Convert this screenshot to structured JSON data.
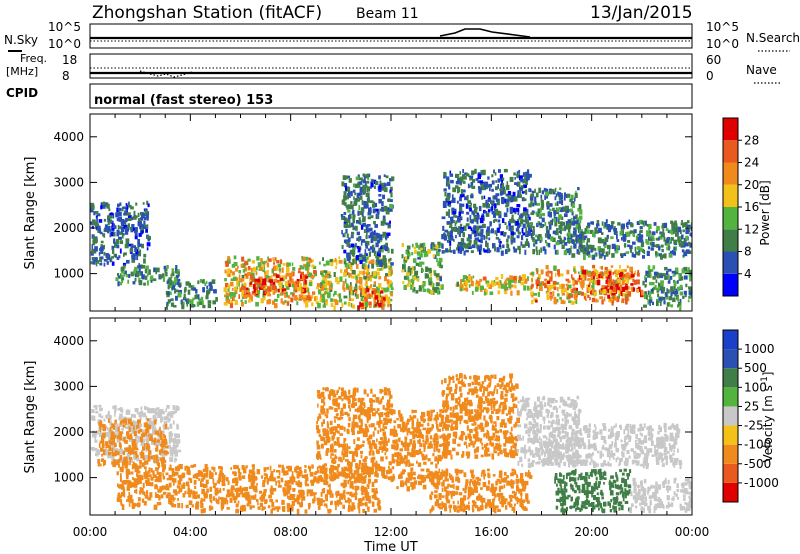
{
  "header": {
    "station": "Zhongshan Station (fitACF)",
    "beam": "Beam 11",
    "date": "13/Jan/2015"
  },
  "noise_panel": {
    "left_label": "N.Sky",
    "right_label": "N.Search",
    "left_ticks": [
      "10^5",
      "10^0"
    ],
    "right_ticks": [
      "10^5",
      "10^0"
    ]
  },
  "freq_panel": {
    "left_label_1": "Freq.",
    "left_label_2": "[MHz]",
    "right_label": "Nave",
    "left_ticks": [
      "18",
      "8"
    ],
    "right_ticks": [
      "60",
      "0"
    ]
  },
  "cpid": {
    "label": "CPID",
    "value": "normal (fast stereo) 153"
  },
  "colors": {
    "power_scale": [
      "#0000ff",
      "#2b50b4",
      "#3f7e46",
      "#52b33f",
      "#f2c21a",
      "#f08a1c",
      "#e85a1e",
      "#e00000"
    ],
    "velocity_scale": [
      "#e00000",
      "#e85a1e",
      "#f08a1c",
      "#f2c21a",
      "#c8c8c8",
      "#52b33f",
      "#3f7e46",
      "#2b50b4",
      "#1a3fc8"
    ]
  },
  "chart_data": [
    {
      "type": "heatmap",
      "title": "",
      "xlabel": "",
      "ylabel": "Slant Range [km]",
      "xlim": [
        "00:00",
        "24:00"
      ],
      "ylim": [
        180,
        4500
      ],
      "x_ticks": [
        "00:00",
        "04:00",
        "08:00",
        "12:00",
        "16:00",
        "20:00",
        "00:00"
      ],
      "y_ticks": [
        1000,
        2000,
        3000,
        4000
      ],
      "colorbar": {
        "label": "Power [dB]",
        "ticks": [
          4,
          8,
          12,
          16,
          20,
          24,
          28
        ],
        "range": [
          0,
          30
        ]
      },
      "regions": [
        {
          "t": [
            0.0,
            2.3
          ],
          "r": [
            1200,
            2600
          ],
          "v": 7
        },
        {
          "t": [
            1.0,
            3.5
          ],
          "r": [
            800,
            1200
          ],
          "v": 10
        },
        {
          "t": [
            3.0,
            5.0
          ],
          "r": [
            300,
            900
          ],
          "v": 9
        },
        {
          "t": [
            5.3,
            9.0
          ],
          "r": [
            350,
            1400
          ],
          "v": 19
        },
        {
          "t": [
            6.0,
            8.6
          ],
          "r": [
            600,
            1000
          ],
          "v": 25
        },
        {
          "t": [
            9.0,
            12.0
          ],
          "r": [
            300,
            1400
          ],
          "v": 16
        },
        {
          "t": [
            10.5,
            12.0
          ],
          "r": [
            300,
            700
          ],
          "v": 24
        },
        {
          "t": [
            10.0,
            12.0
          ],
          "r": [
            1200,
            3200
          ],
          "v": 8
        },
        {
          "t": [
            12.4,
            14.0
          ],
          "r": [
            600,
            1700
          ],
          "v": 13
        },
        {
          "t": [
            14.0,
            17.5
          ],
          "r": [
            1500,
            3300
          ],
          "v": 7
        },
        {
          "t": [
            14.5,
            17.5
          ],
          "r": [
            600,
            1000
          ],
          "v": 18
        },
        {
          "t": [
            17.5,
            19.5
          ],
          "r": [
            1500,
            2900
          ],
          "v": 9
        },
        {
          "t": [
            17.5,
            21.5
          ],
          "r": [
            400,
            1200
          ],
          "v": 21
        },
        {
          "t": [
            19.5,
            22.0
          ],
          "r": [
            600,
            1100
          ],
          "v": 26
        },
        {
          "t": [
            19.0,
            24.0
          ],
          "r": [
            1400,
            2200
          ],
          "v": 9
        },
        {
          "t": [
            22.0,
            24.0
          ],
          "r": [
            300,
            1200
          ],
          "v": 10
        }
      ]
    },
    {
      "type": "heatmap",
      "title": "",
      "xlabel": "Time UT",
      "ylabel": "Slant Range [km]",
      "xlim": [
        "00:00",
        "24:00"
      ],
      "ylim": [
        180,
        4500
      ],
      "x_ticks": [
        "00:00",
        "04:00",
        "08:00",
        "12:00",
        "16:00",
        "20:00",
        "00:00"
      ],
      "y_ticks": [
        1000,
        2000,
        3000,
        4000
      ],
      "colorbar": {
        "label": "Velocity [m s^-1]",
        "ticks": [
          -1000,
          -500,
          -100,
          -25,
          25,
          100,
          500,
          1000
        ],
        "range": [
          -1250,
          1250
        ]
      },
      "regions": [
        {
          "t": [
            0.0,
            3.5
          ],
          "r": [
            1400,
            2600
          ],
          "v": 0
        },
        {
          "t": [
            0.3,
            3.0
          ],
          "r": [
            1300,
            2300
          ],
          "v": -150
        },
        {
          "t": [
            1.0,
            4.0
          ],
          "r": [
            400,
            1300
          ],
          "v": -200
        },
        {
          "t": [
            4.0,
            11.5
          ],
          "r": [
            300,
            1300
          ],
          "v": -250
        },
        {
          "t": [
            9.0,
            12.0
          ],
          "r": [
            1000,
            3000
          ],
          "v": -150
        },
        {
          "t": [
            12.0,
            14.2
          ],
          "r": [
            800,
            2500
          ],
          "v": -200
        },
        {
          "t": [
            13.5,
            17.5
          ],
          "r": [
            300,
            1200
          ],
          "v": -250
        },
        {
          "t": [
            14.0,
            17.0
          ],
          "r": [
            1500,
            3300
          ],
          "v": -150
        },
        {
          "t": [
            17.0,
            19.5
          ],
          "r": [
            1300,
            2800
          ],
          "v": 0
        },
        {
          "t": [
            18.0,
            23.5
          ],
          "r": [
            1300,
            2200
          ],
          "v": 5
        },
        {
          "t": [
            18.5,
            21.5
          ],
          "r": [
            300,
            1200
          ],
          "v": 200
        },
        {
          "t": [
            21.5,
            24.0
          ],
          "r": [
            300,
            1000
          ],
          "v": 0
        }
      ]
    }
  ]
}
